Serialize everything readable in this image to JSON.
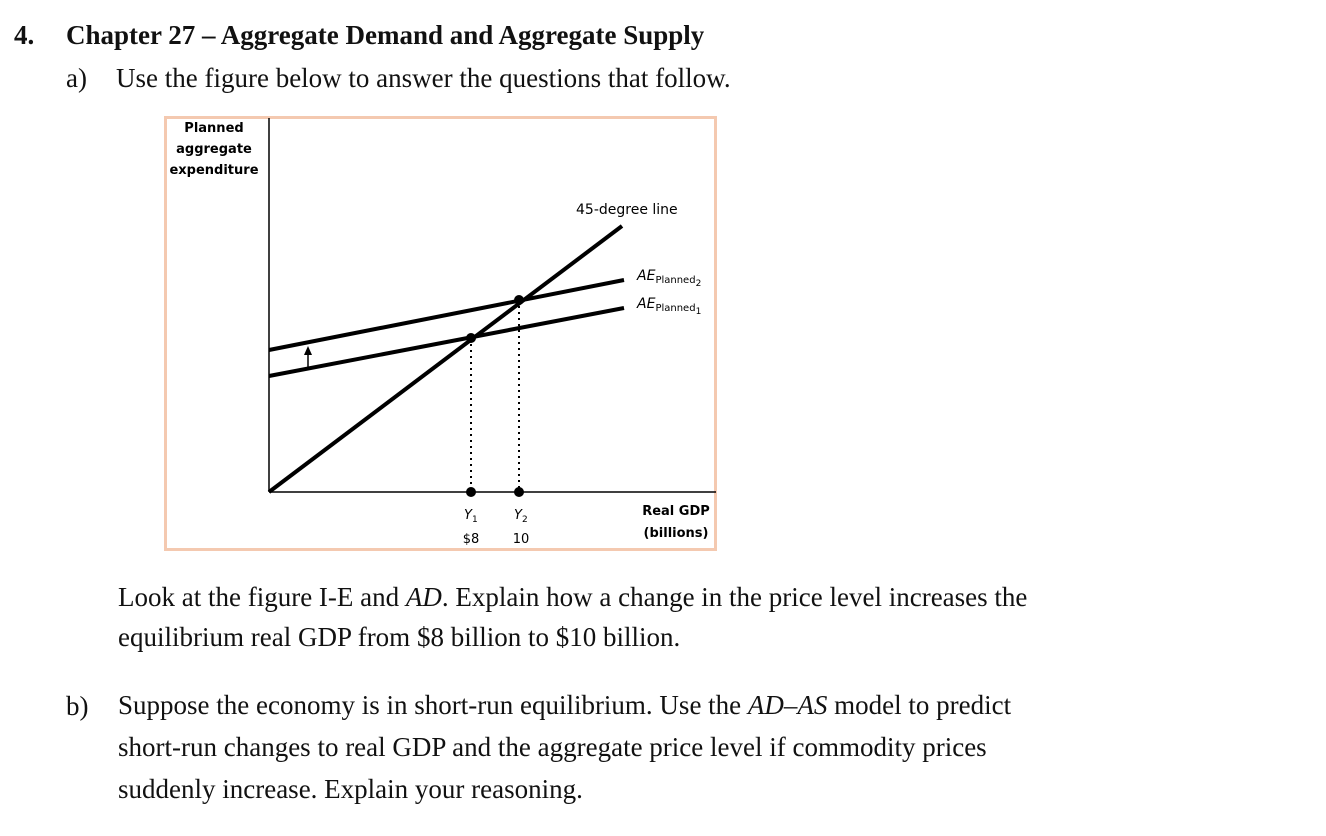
{
  "question": {
    "number": "4.",
    "title": "Chapter 27 – Aggregate Demand and Aggregate Supply"
  },
  "part_a": {
    "label": "a)",
    "intro": "Use the figure below to answer the questions that follow.",
    "text_line1_pre": "Look at the figure I-E and ",
    "text_line1_italic": "AD",
    "text_line1_post": ". Explain how a change in the price level increases the",
    "text_line2": "equilibrium real GDP from $8 billion to $10 billion."
  },
  "figure": {
    "y_axis_label": [
      "Planned",
      "aggregate",
      "expenditure"
    ],
    "x_axis_label": [
      "Real GDP",
      "(billions)"
    ],
    "line_45_label": "45-degree line",
    "ae2_label_main": "AE",
    "ae2_label_sub": "Planned",
    "ae2_label_index": "2",
    "ae1_label_main": "AE",
    "ae1_label_sub": "Planned",
    "ae1_label_index": "1",
    "y1_label": "Y",
    "y1_index": "1",
    "y2_label": "Y",
    "y2_index": "2",
    "y1_value": "$8",
    "y2_value": "10",
    "colors": {
      "frame": "#f4c9b0",
      "line": "#000000"
    }
  },
  "part_b": {
    "label": "b)",
    "line1_pre": "Suppose the economy is in short-run equilibrium. Use the ",
    "line1_italic": "AD–AS",
    "line1_post": " model to predict",
    "line2": "short-run changes to real GDP and the aggregate price level if commodity prices",
    "line3": "suddenly increase. Explain your reasoning."
  }
}
